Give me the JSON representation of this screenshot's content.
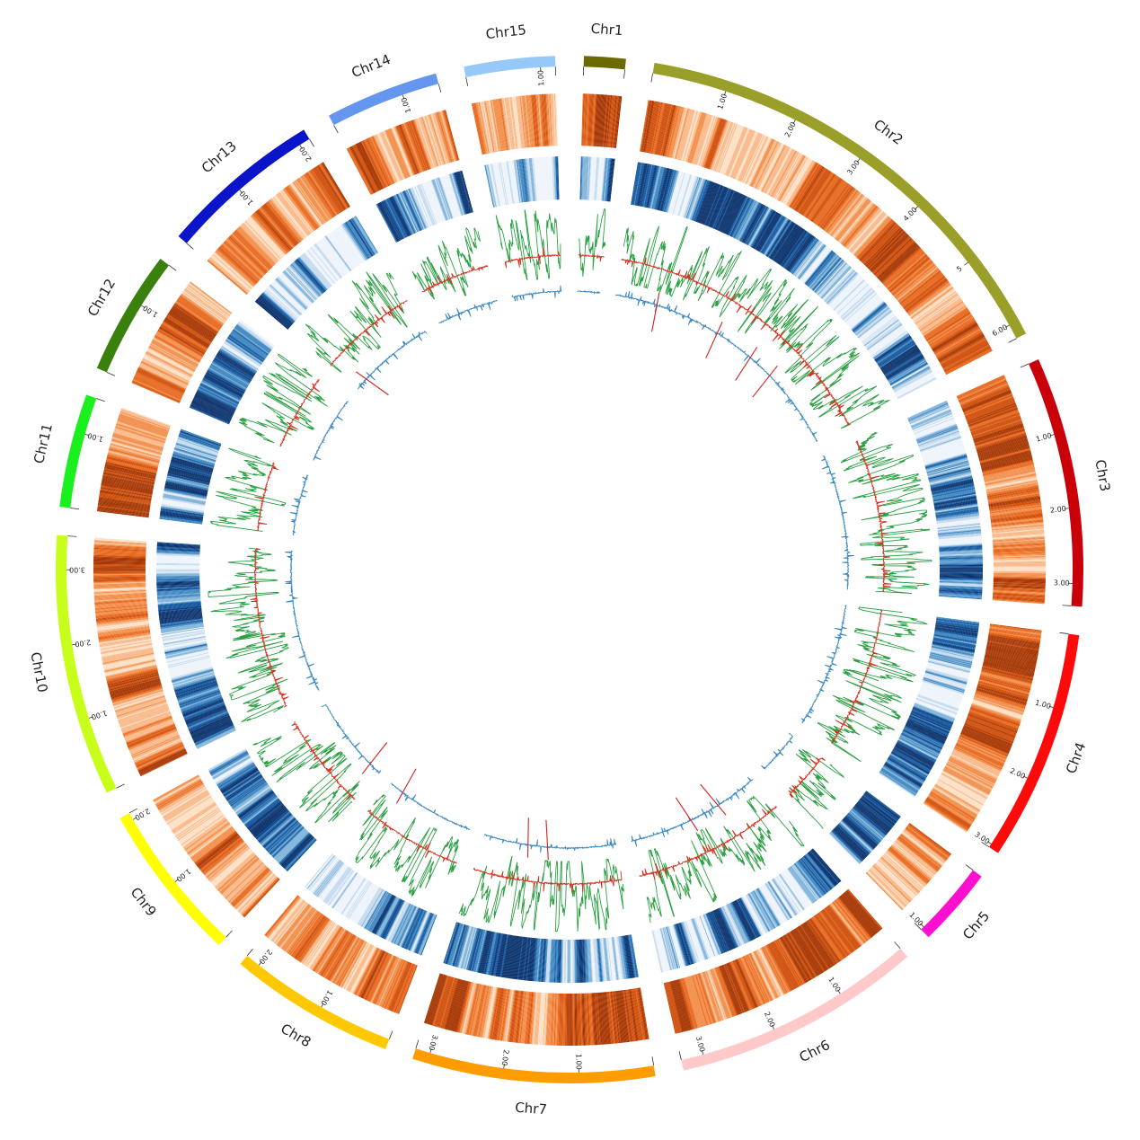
{
  "colors": {
    "heat_orange": [
      "#fde0c5",
      "#f9b98a",
      "#f28e4a",
      "#e8691f",
      "#cf4f0c",
      "#a63603"
    ],
    "heat_blue": [
      "#eef4fb",
      "#c6dbef",
      "#7fb3da",
      "#3d85c0",
      "#13579f",
      "#08306b"
    ],
    "line_green": "#2ca044",
    "line_red": "#d7301f",
    "line_blue": "#3a87c2",
    "spike_red": "#d32020"
  },
  "chromosomes": [
    {
      "name": "Chr1",
      "length": 0.55,
      "color": "#6b6a00",
      "ticks": []
    },
    {
      "name": "Chr2",
      "length": 6.2,
      "color": "#9a9f2a",
      "ticks": [
        "1.00",
        "2.00",
        "3.00",
        "4.00",
        "5",
        "6.00"
      ]
    },
    {
      "name": "Chr3",
      "length": 3.3,
      "color": "#c9000a",
      "ticks": [
        "1.00",
        "2.00",
        "3.00"
      ]
    },
    {
      "name": "Chr4",
      "length": 3.05,
      "color": "#ff0a0a",
      "ticks": [
        "1.00",
        "2.00",
        "3.00"
      ]
    },
    {
      "name": "Chr5",
      "length": 1.05,
      "color": "#ff10d0",
      "ticks": [
        "1.00"
      ]
    },
    {
      "name": "Chr6",
      "length": 3.3,
      "color": "#ffc9c9",
      "ticks": [
        "1.00",
        "2.00",
        "3.00"
      ]
    },
    {
      "name": "Chr7",
      "length": 3.2,
      "color": "#ff9d00",
      "ticks": [
        "1.00",
        "2.00",
        "3.00"
      ]
    },
    {
      "name": "Chr8",
      "length": 2.2,
      "color": "#ffc800",
      "ticks": [
        "1.00",
        "2.00"
      ]
    },
    {
      "name": "Chr9",
      "length": 2.1,
      "color": "#ffff00",
      "ticks": [
        "1.00",
        "2.00"
      ]
    },
    {
      "name": "Chr10",
      "length": 3.45,
      "color": "#c8ff1a",
      "ticks": [
        "1.00",
        "2.00",
        "3.00"
      ]
    },
    {
      "name": "Chr11",
      "length": 1.5,
      "color": "#19f01e",
      "ticks": [
        "1.00"
      ]
    },
    {
      "name": "Chr12",
      "length": 1.65,
      "color": "#3a800c",
      "ticks": [
        "1.00"
      ]
    },
    {
      "name": "Chr13",
      "length": 2.15,
      "color": "#0a14c8",
      "ticks": [
        "1.00",
        "2.00"
      ]
    },
    {
      "name": "Chr14",
      "length": 1.5,
      "color": "#6496f0",
      "ticks": [
        "1.00"
      ]
    },
    {
      "name": "Chr15",
      "length": 1.2,
      "color": "#96c8fa",
      "ticks": [
        "1.00"
      ]
    }
  ]
}
